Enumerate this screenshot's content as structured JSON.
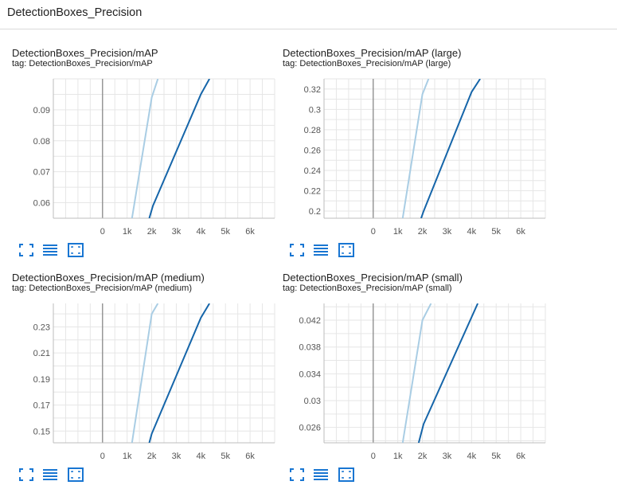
{
  "section": {
    "title": "DetectionBoxes_Precision"
  },
  "charts": [
    {
      "title": "DetectionBoxes_Precision/mAP",
      "tag": "tag: DetectionBoxes_Precision/mAP",
      "chart_data": {
        "type": "line",
        "x_ticks": [
          "0",
          "1k",
          "2k",
          "3k",
          "4k",
          "5k",
          "6k"
        ],
        "y_ticks": [
          "0.06",
          "0.07",
          "0.08",
          "0.09"
        ],
        "xlim": [
          -2000,
          7000
        ],
        "ylim": [
          0.055,
          0.1
        ],
        "series": [
          {
            "color": "#a9cde4",
            "x": [
              1200,
              2000,
              2250
            ],
            "y": [
              0.055,
              0.094,
              0.1
            ]
          },
          {
            "color": "#1565a9",
            "x": [
              1900,
              2050,
              4000,
              4350
            ],
            "y": [
              0.055,
              0.059,
              0.095,
              0.1
            ]
          }
        ]
      }
    },
    {
      "title": "DetectionBoxes_Precision/mAP (large)",
      "tag": "tag: DetectionBoxes_Precision/mAP (large)",
      "chart_data": {
        "type": "line",
        "x_ticks": [
          "0",
          "1k",
          "2k",
          "3k",
          "4k",
          "5k",
          "6k"
        ],
        "y_ticks": [
          "0.2",
          "0.22",
          "0.24",
          "0.26",
          "0.28",
          "0.3",
          "0.32"
        ],
        "xlim": [
          -2000,
          7000
        ],
        "ylim": [
          0.193,
          0.33
        ],
        "series": [
          {
            "color": "#a9cde4",
            "x": [
              1200,
              2000,
              2250
            ],
            "y": [
              0.193,
              0.315,
              0.33
            ]
          },
          {
            "color": "#1565a9",
            "x": [
              1950,
              2050,
              4000,
              4350
            ],
            "y": [
              0.193,
              0.2,
              0.317,
              0.33
            ]
          }
        ]
      }
    },
    {
      "title": "DetectionBoxes_Precision/mAP (medium)",
      "tag": "tag: DetectionBoxes_Precision/mAP (medium)",
      "chart_data": {
        "type": "line",
        "x_ticks": [
          "0",
          "1k",
          "2k",
          "3k",
          "4k",
          "5k",
          "6k"
        ],
        "y_ticks": [
          "0.15",
          "0.17",
          "0.19",
          "0.21",
          "0.23"
        ],
        "xlim": [
          -2000,
          7000
        ],
        "ylim": [
          0.141,
          0.248
        ],
        "series": [
          {
            "color": "#a9cde4",
            "x": [
              1200,
              2000,
              2250
            ],
            "y": [
              0.141,
              0.24,
              0.248
            ]
          },
          {
            "color": "#1565a9",
            "x": [
              1900,
              2000,
              4000,
              4350
            ],
            "y": [
              0.141,
              0.148,
              0.237,
              0.248
            ]
          }
        ]
      }
    },
    {
      "title": "DetectionBoxes_Precision/mAP (small)",
      "tag": "tag: DetectionBoxes_Precision/mAP (small)",
      "chart_data": {
        "type": "line",
        "x_ticks": [
          "0",
          "1k",
          "2k",
          "3k",
          "4k",
          "5k",
          "6k"
        ],
        "y_ticks": [
          "0.026",
          "0.03",
          "0.034",
          "0.038",
          "0.042"
        ],
        "xlim": [
          -2000,
          7000
        ],
        "ylim": [
          0.0237,
          0.0445
        ],
        "series": [
          {
            "color": "#a9cde4",
            "x": [
              1200,
              2000,
              2350
            ],
            "y": [
              0.0237,
              0.042,
              0.0445
            ]
          },
          {
            "color": "#1565a9",
            "x": [
              1850,
              2050,
              4250
            ],
            "y": [
              0.0237,
              0.0265,
              0.0445
            ]
          }
        ]
      }
    }
  ],
  "toolbar": {
    "icons": [
      "fullscreen-icon",
      "toggle-log-scale-icon",
      "fit-domain-icon"
    ],
    "accent": "#1976d2"
  }
}
